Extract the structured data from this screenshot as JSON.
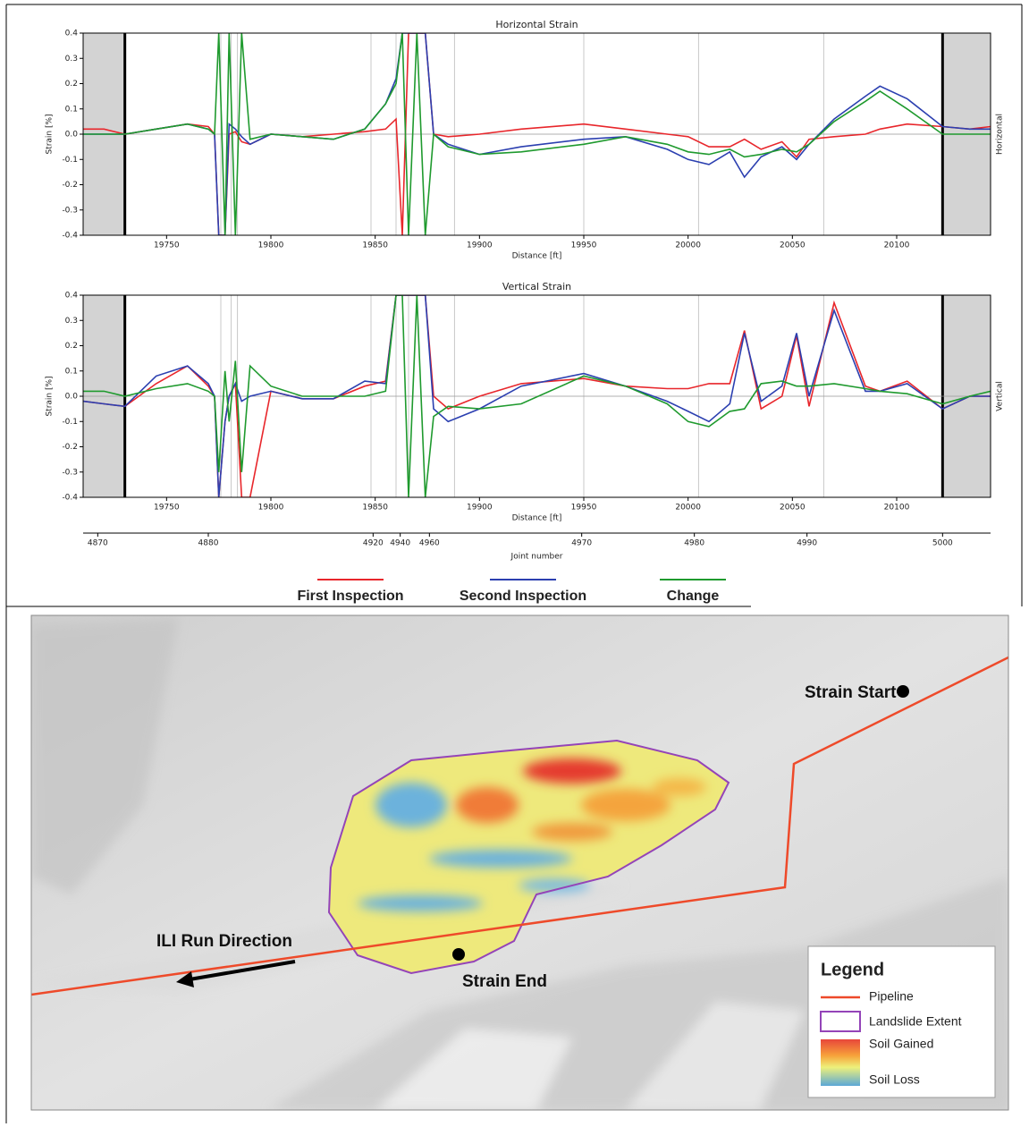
{
  "chart_data": [
    {
      "type": "line",
      "title": "Horizontal Strain",
      "xlabel": "Distance [ft]",
      "ylabel": "Strain [%]",
      "side_label": "Horizontal",
      "x": [
        19710,
        19720,
        19730,
        19745,
        19760,
        19770,
        19773,
        19775,
        19778,
        19780,
        19783,
        19786,
        19790,
        19800,
        19815,
        19830,
        19845,
        19855,
        19860,
        19863,
        19866,
        19870,
        19874,
        19878,
        19885,
        19900,
        19920,
        19950,
        19970,
        19990,
        20000,
        20010,
        20020,
        20027,
        20035,
        20045,
        20052,
        20058,
        20070,
        20085,
        20092,
        20105,
        20122,
        20135,
        20145
      ],
      "series": [
        {
          "name": "First Inspection",
          "color": "#e8262b",
          "values": [
            0.02,
            0.02,
            0.0,
            0.02,
            0.04,
            0.03,
            0.0,
            -0.4,
            -0.4,
            0.0,
            0.01,
            -0.03,
            -0.04,
            0.0,
            -0.01,
            0.0,
            0.01,
            0.02,
            0.06,
            -0.4,
            0.4,
            0.4,
            0.4,
            0.0,
            -0.01,
            0.0,
            0.02,
            0.04,
            0.02,
            0.0,
            -0.01,
            -0.05,
            -0.05,
            -0.02,
            -0.06,
            -0.03,
            -0.09,
            -0.02,
            -0.01,
            0.0,
            0.02,
            0.04,
            0.03,
            0.02,
            0.03
          ]
        },
        {
          "name": "Second Inspection",
          "color": "#2b3fb0",
          "values": [
            0.0,
            0.0,
            0.0,
            0.02,
            0.04,
            0.02,
            0.0,
            -0.4,
            -0.4,
            0.04,
            0.02,
            -0.01,
            -0.04,
            0.0,
            -0.01,
            -0.02,
            0.02,
            0.12,
            0.22,
            0.4,
            0.4,
            0.4,
            0.4,
            0.0,
            -0.04,
            -0.08,
            -0.05,
            -0.02,
            -0.01,
            -0.06,
            -0.1,
            -0.12,
            -0.07,
            -0.17,
            -0.09,
            -0.05,
            -0.1,
            -0.04,
            0.06,
            0.15,
            0.19,
            0.14,
            0.03,
            0.02,
            0.02
          ]
        },
        {
          "name": "Change",
          "color": "#1f9a2e",
          "values": [
            0.0,
            0.0,
            0.0,
            0.02,
            0.04,
            0.02,
            0.0,
            0.4,
            -0.4,
            0.4,
            -0.4,
            0.4,
            -0.02,
            0.0,
            -0.01,
            -0.02,
            0.02,
            0.12,
            0.2,
            0.4,
            -0.4,
            0.4,
            -0.4,
            0.0,
            -0.05,
            -0.08,
            -0.07,
            -0.04,
            -0.01,
            -0.04,
            -0.07,
            -0.08,
            -0.06,
            -0.09,
            -0.08,
            -0.06,
            -0.07,
            -0.04,
            0.05,
            0.13,
            0.17,
            0.1,
            0.0,
            0.0,
            0.0
          ]
        }
      ],
      "xlim": [
        19710,
        20145
      ],
      "xticks": [
        19750,
        19800,
        19850,
        19900,
        19950,
        20000,
        20050,
        20100
      ],
      "ylim": [
        -0.4,
        0.4
      ],
      "yticks": [
        -0.4,
        -0.3,
        -0.2,
        -0.1,
        {
          "value": 0,
          "label": "0.0"
        },
        0.1,
        0.2,
        0.3,
        0.4
      ],
      "shaded": [
        [
          19710,
          19730
        ],
        [
          20122,
          20145
        ]
      ],
      "vlines": [
        19776,
        19781,
        19784,
        19848,
        19860,
        19888,
        19950,
        20005,
        20065
      ]
    },
    {
      "type": "line",
      "title": "Vertical Strain",
      "xlabel": "Distance [ft]",
      "ylabel": "Strain [%]",
      "side_label": "Vertical",
      "x": [
        19710,
        19720,
        19730,
        19745,
        19760,
        19770,
        19773,
        19775,
        19778,
        19780,
        19783,
        19786,
        19790,
        19800,
        19815,
        19830,
        19845,
        19855,
        19860,
        19863,
        19866,
        19870,
        19874,
        19878,
        19885,
        19900,
        19920,
        19950,
        19970,
        19990,
        20000,
        20010,
        20020,
        20027,
        20035,
        20045,
        20052,
        20058,
        20070,
        20085,
        20092,
        20105,
        20122,
        20135,
        20145
      ],
      "series": [
        {
          "color": "#e8262b",
          "values": [
            -0.02,
            -0.03,
            -0.04,
            0.05,
            0.12,
            0.04,
            0.0,
            -0.4,
            -0.1,
            0.0,
            0.05,
            -0.4,
            -0.4,
            0.02,
            -0.01,
            -0.01,
            0.04,
            0.06,
            0.4,
            0.4,
            0.4,
            0.4,
            0.4,
            0.0,
            -0.05,
            0.0,
            0.05,
            0.07,
            0.04,
            0.03,
            0.03,
            0.05,
            0.05,
            0.26,
            -0.05,
            0.0,
            0.24,
            -0.04,
            0.37,
            0.04,
            0.02,
            0.06,
            -0.05,
            0.0,
            0.0
          ]
        },
        {
          "color": "#2b3fb0",
          "values": [
            -0.02,
            -0.03,
            -0.04,
            0.08,
            0.12,
            0.05,
            0.0,
            -0.4,
            -0.1,
            0.0,
            0.05,
            -0.02,
            0.0,
            0.02,
            -0.01,
            -0.01,
            0.06,
            0.05,
            0.4,
            0.4,
            0.4,
            0.4,
            0.4,
            -0.05,
            -0.1,
            -0.05,
            0.04,
            0.09,
            0.04,
            -0.02,
            -0.06,
            -0.1,
            -0.03,
            0.25,
            -0.02,
            0.04,
            0.25,
            0.0,
            0.34,
            0.02,
            0.02,
            0.05,
            -0.05,
            0.0,
            0.0
          ]
        },
        {
          "color": "#1f9a2e",
          "values": [
            0.02,
            0.02,
            0.0,
            0.03,
            0.05,
            0.02,
            0.0,
            -0.3,
            0.1,
            -0.1,
            0.14,
            -0.3,
            0.12,
            0.04,
            0.0,
            0.0,
            0.0,
            0.02,
            0.4,
            0.4,
            -0.4,
            0.4,
            -0.4,
            -0.08,
            -0.04,
            -0.05,
            -0.03,
            0.08,
            0.04,
            -0.03,
            -0.1,
            -0.12,
            -0.06,
            -0.05,
            0.05,
            0.06,
            0.04,
            0.04,
            0.05,
            0.03,
            0.02,
            0.01,
            -0.03,
            0.0,
            0.02
          ]
        }
      ],
      "xlim": [
        19710,
        20145
      ],
      "xticks": [
        19750,
        19800,
        19850,
        19900,
        19950,
        20000,
        20050,
        20100
      ],
      "ylim": [
        -0.4,
        0.4
      ],
      "yticks": [
        -0.4,
        -0.3,
        -0.2,
        -0.1,
        {
          "value": 0,
          "label": "0.0"
        },
        0.1,
        0.2,
        0.3,
        0.4
      ],
      "shaded": [
        [
          19710,
          19730
        ],
        [
          20122,
          20145
        ]
      ],
      "vlines": [
        19776,
        19781,
        19784,
        19848,
        19860,
        19866,
        19888,
        19950,
        20005,
        20065
      ]
    }
  ],
  "joint_axis": {
    "label": "Joint number",
    "x": [
      19717,
      19770,
      19849,
      19862,
      19876,
      19949,
      20003,
      20057,
      20122
    ],
    "ticks": [
      4870,
      4880,
      4920,
      4940,
      4960,
      4970,
      4980,
      4990,
      5000
    ]
  },
  "map": {
    "strain_start": "Strain Start",
    "strain_end": "Strain End",
    "run_direction": "ILI Run Direction",
    "legend": {
      "title": "Legend",
      "pipeline": "Pipeline",
      "landslide": "Landslide Extent",
      "gained": "Soil Gained",
      "loss": "Soil Loss"
    }
  }
}
